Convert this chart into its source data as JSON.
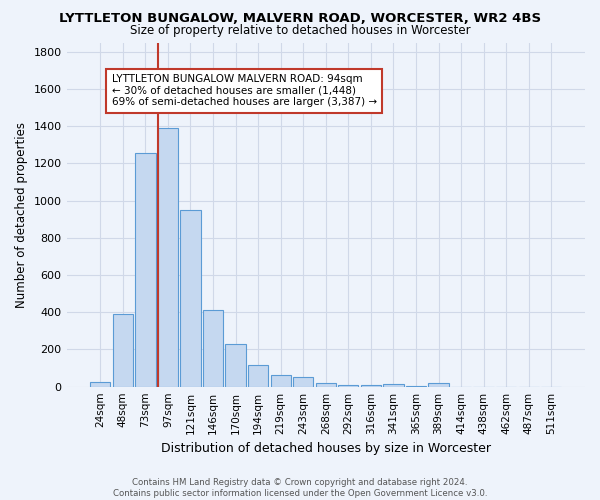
{
  "title": "LYTTLETON BUNGALOW, MALVERN ROAD, WORCESTER, WR2 4BS",
  "subtitle": "Size of property relative to detached houses in Worcester",
  "xlabel": "Distribution of detached houses by size in Worcester",
  "ylabel": "Number of detached properties",
  "categories": [
    "24sqm",
    "48sqm",
    "73sqm",
    "97sqm",
    "121sqm",
    "146sqm",
    "170sqm",
    "194sqm",
    "219sqm",
    "243sqm",
    "268sqm",
    "292sqm",
    "316sqm",
    "341sqm",
    "365sqm",
    "389sqm",
    "414sqm",
    "438sqm",
    "462sqm",
    "487sqm",
    "511sqm"
  ],
  "values": [
    25,
    390,
    1255,
    1390,
    950,
    410,
    230,
    115,
    65,
    50,
    20,
    10,
    10,
    12,
    5,
    20,
    0,
    0,
    0,
    0,
    0
  ],
  "bar_color": "#c5d8f0",
  "bar_edge_color": "#5b9bd5",
  "grid_color": "#d0d8e8",
  "background_color": "#eef3fb",
  "vline_index": 3,
  "vline_color": "#c0392b",
  "annotation_text": "LYTTLETON BUNGALOW MALVERN ROAD: 94sqm\n← 30% of detached houses are smaller (1,448)\n69% of semi-detached houses are larger (3,387) →",
  "annotation_box_color": "#ffffff",
  "annotation_box_edge": "#c0392b",
  "footer": "Contains HM Land Registry data © Crown copyright and database right 2024.\nContains public sector information licensed under the Open Government Licence v3.0.",
  "ylim": [
    0,
    1850
  ],
  "yticks": [
    0,
    200,
    400,
    600,
    800,
    1000,
    1200,
    1400,
    1600,
    1800
  ]
}
